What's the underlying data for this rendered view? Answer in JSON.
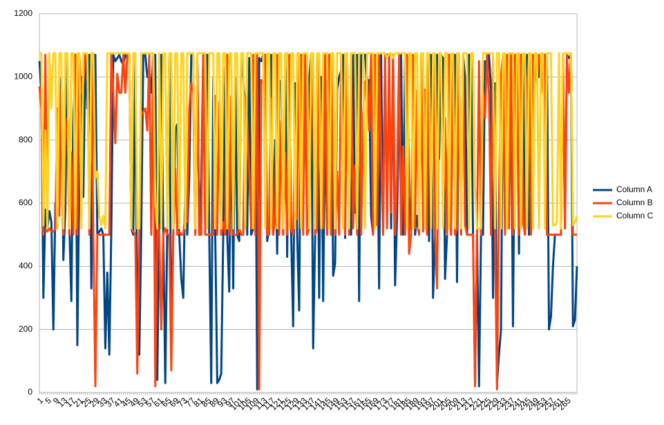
{
  "chart_data": {
    "type": "line",
    "categories": [
      1,
      null,
      null,
      null,
      5,
      null,
      null,
      null,
      9,
      null,
      null,
      null,
      13,
      null,
      null,
      null,
      17,
      null,
      null,
      null,
      21,
      null,
      null,
      null,
      25,
      null,
      null,
      null,
      29,
      null,
      null,
      null,
      33,
      null,
      null,
      null,
      37,
      null,
      null,
      null,
      41,
      null,
      null,
      null,
      45,
      null,
      null,
      null,
      49,
      null,
      null,
      null,
      53,
      null,
      null,
      null,
      57,
      null,
      null,
      null,
      61,
      null,
      null,
      null,
      65,
      null,
      null,
      null,
      69,
      null,
      null,
      null,
      73,
      null,
      null,
      null,
      77,
      null,
      null,
      null,
      81,
      null,
      null,
      null,
      85,
      null,
      null,
      null,
      89,
      null,
      null,
      null,
      93,
      null,
      null,
      null,
      97,
      null,
      null,
      null,
      101,
      null,
      null,
      null,
      105,
      null,
      null,
      null,
      109,
      null,
      null,
      null,
      113,
      null,
      null,
      null,
      117,
      null,
      null,
      null,
      121,
      null,
      null,
      null,
      125,
      null,
      null,
      null,
      129,
      null,
      null,
      null,
      133,
      null,
      null,
      null,
      137,
      null,
      null,
      null,
      141,
      null,
      null,
      null,
      145,
      null,
      null,
      null,
      149,
      null,
      null,
      null,
      153,
      null,
      null,
      null,
      157,
      null,
      null,
      null,
      161,
      null,
      null,
      null,
      165,
      null,
      null,
      null,
      169,
      null,
      null,
      null,
      173,
      null,
      null,
      null,
      177,
      null,
      null,
      null,
      181,
      null,
      null,
      null,
      185,
      null,
      null,
      null,
      189,
      null,
      null,
      null,
      193,
      null,
      null,
      null,
      197,
      null,
      null,
      null,
      201,
      null,
      null,
      null,
      205,
      null,
      null,
      null,
      209,
      null,
      null,
      null,
      213,
      null,
      null,
      null,
      217,
      null,
      null,
      null,
      221,
      null,
      null,
      null,
      225,
      null,
      null,
      null,
      229,
      null,
      null,
      null,
      233,
      null,
      null,
      null,
      237,
      null,
      null,
      null,
      241,
      null,
      null,
      null,
      245,
      null,
      null,
      null,
      249,
      null,
      null,
      null,
      253,
      null,
      null,
      null,
      257,
      null,
      null,
      null,
      261,
      null,
      null,
      null,
      265,
      null,
      null,
      null,
      null,
      null
    ],
    "series": [
      {
        "name": "Column A",
        "color": "#004586",
        "values": [
          1050,
          960,
          300,
          580,
          520,
          575,
          540,
          200,
          600,
          560,
          830,
          1000,
          420,
          580,
          1070,
          530,
          290,
          880,
          1070,
          150,
          700,
          1000,
          620,
          1070,
          900,
          1070,
          330,
          1070,
          1070,
          500,
          510,
          520,
          500,
          140,
          380,
          120,
          520,
          1070,
          1050,
          1060,
          1070,
          1050,
          1040,
          1070,
          1060,
          1070,
          520,
          500,
          1070,
          180,
          120,
          520,
          1070,
          1070,
          1000,
          1020,
          950,
          1070,
          1070,
          40,
          560,
          1070,
          500,
          30,
          520,
          1070,
          130,
          500,
          830,
          850,
          500,
          360,
          300,
          670,
          500,
          680,
          1070,
          1070,
          500,
          1070,
          500,
          680,
          1070,
          1070,
          1070,
          500,
          30,
          1000,
          500,
          30,
          40,
          60,
          500,
          1030,
          500,
          320,
          900,
          330,
          1000,
          500,
          480,
          1060,
          1000,
          900,
          500,
          1060,
          500,
          520,
          1070,
          10,
          1060,
          1050,
          1070,
          1070,
          480,
          520,
          1070,
          500,
          800,
          440,
          990,
          980,
          500,
          1070,
          430,
          1000,
          500,
          210,
          980,
          500,
          260,
          1070,
          1050,
          1000,
          500,
          990,
          1070,
          140,
          500,
          1070,
          300,
          1000,
          290,
          870,
          500,
          1070,
          1070,
          370,
          410,
          960,
          1000,
          1020,
          1070,
          490,
          1070,
          550,
          500,
          1070,
          570,
          1070,
          290,
          1070,
          1070,
          1070,
          960,
          990,
          560,
          500,
          890,
          910,
          330,
          1070,
          500,
          1070,
          1070,
          1070,
          520,
          1070,
          340,
          560,
          900,
          1070,
          500,
          1070,
          1070,
          620,
          510,
          1000,
          500,
          560,
          500,
          1070,
          1030,
          550,
          1070,
          480,
          1070,
          300,
          500,
          1070,
          740,
          1070,
          1060,
          360,
          500,
          1070,
          500,
          1070,
          1070,
          350,
          1070,
          500,
          1070,
          1000,
          500,
          1070,
          1070,
          500,
          30,
          500,
          20,
          500,
          500,
          1050,
          1000,
          1070,
          960,
          300,
          980,
          30,
          120,
          200,
          1070,
          1070,
          600,
          1070,
          1000,
          210,
          1000,
          1070,
          440,
          1070,
          1070,
          500,
          1070,
          500,
          1070,
          1050,
          1070,
          1070,
          1000,
          1070,
          1070,
          1070,
          1070,
          200,
          240,
          400,
          500,
          500,
          500,
          500,
          1070,
          520,
          1070,
          1060,
          1070,
          210,
          230,
          400
        ]
      },
      {
        "name": "Column B",
        "color": "#ff420e",
        "values": [
          970,
          900,
          500,
          1070,
          510,
          520,
          510,
          510,
          520,
          900,
          560,
          960,
          500,
          800,
          870,
          500,
          760,
          500,
          1070,
          500,
          1070,
          950,
          980,
          1070,
          1070,
          500,
          1070,
          500,
          20,
          500,
          500,
          500,
          500,
          500,
          500,
          500,
          1070,
          950,
          790,
          1010,
          950,
          950,
          1070,
          950,
          1070,
          1070,
          520,
          510,
          500,
          60,
          500,
          880,
          890,
          900,
          830,
          1070,
          500,
          1070,
          20,
          540,
          500,
          200,
          500,
          520,
          500,
          500,
          70,
          500,
          710,
          500,
          510,
          500,
          500,
          560,
          540,
          900,
          980,
          950,
          500,
          1070,
          500,
          500,
          1070,
          500,
          500,
          500,
          500,
          500,
          940,
          500,
          920,
          500,
          540,
          500,
          1070,
          500,
          940,
          500,
          500,
          500,
          520,
          500,
          500,
          940,
          860,
          700,
          520,
          1070,
          500,
          1070,
          10,
          990,
          980,
          1070,
          500,
          500,
          930,
          500,
          560,
          1070,
          500,
          860,
          500,
          760,
          500,
          1070,
          520,
          500,
          800,
          550,
          1070,
          1070,
          500,
          1070,
          500,
          520,
          1070,
          880,
          500,
          520,
          1070,
          650,
          520,
          1070,
          500,
          1070,
          500,
          1070,
          500,
          700,
          500,
          1070,
          650,
          500,
          1070,
          500,
          1070,
          520,
          720,
          500,
          1070,
          500,
          880,
          980,
          1000,
          830,
          1070,
          500,
          1070,
          530,
          1070,
          760,
          500,
          1070,
          520,
          1070,
          570,
          1070,
          500,
          690,
          1070,
          500,
          780,
          500,
          1070,
          440,
          500,
          1070,
          520,
          960,
          500,
          1070,
          510,
          960,
          500,
          1070,
          520,
          1070,
          500,
          330,
          950,
          1070,
          530,
          870,
          500,
          1070,
          500,
          1070,
          500,
          520,
          1070,
          500,
          1070,
          530,
          500,
          500,
          500,
          500,
          20,
          500,
          1050,
          500,
          950,
          870,
          1070,
          940,
          500,
          1070,
          500,
          10,
          600,
          1000,
          1070,
          500,
          1070,
          520,
          1070,
          500,
          1070,
          1070,
          500,
          1070,
          540,
          500,
          970,
          1070,
          500,
          1070,
          1070,
          980,
          1070,
          1070,
          950,
          1070,
          500,
          500,
          500,
          500,
          500,
          500,
          500,
          500,
          1070,
          520,
          1070,
          950,
          1070,
          500,
          500,
          500
        ]
      },
      {
        "name": "Column C",
        "color": "#ffd320",
        "values": [
          1075,
          1075,
          530,
          830,
          520,
          1075,
          900,
          1075,
          1075,
          520,
          1075,
          1075,
          520,
          1075,
          1075,
          520,
          1075,
          1075,
          520,
          1075,
          1075,
          520,
          1075,
          1075,
          1075,
          520,
          1075,
          1075,
          680,
          700,
          560,
          530,
          560,
          520,
          1075,
          1075,
          1075,
          1075,
          1075,
          1075,
          1075,
          1075,
          1075,
          1075,
          1075,
          1075,
          520,
          1075,
          1075,
          520,
          520,
          1075,
          1075,
          1075,
          1075,
          1075,
          1075,
          1075,
          600,
          520,
          1075,
          520,
          1075,
          1075,
          520,
          1075,
          1075,
          520,
          1075,
          1075,
          520,
          1075,
          1075,
          520,
          1075,
          1075,
          1075,
          1075,
          520,
          1075,
          1075,
          1075,
          1075,
          1075,
          520,
          1075,
          1075,
          1075,
          520,
          1075,
          1075,
          520,
          1075,
          1075,
          520,
          1075,
          1075,
          520,
          1075,
          1075,
          520,
          1075,
          1075,
          520,
          1075,
          1075,
          1075,
          520,
          1075,
          1075,
          1075,
          1075,
          1075,
          520,
          1075,
          1075,
          520,
          1075,
          1075,
          520,
          1075,
          1075,
          520,
          1075,
          1075,
          520,
          1075,
          1075,
          520,
          1075,
          1075,
          520,
          1075,
          1075,
          1075,
          520,
          1075,
          1075,
          520,
          1075,
          1075,
          520,
          1075,
          1075,
          1075,
          520,
          1075,
          1075,
          520,
          1075,
          1075,
          1075,
          520,
          1075,
          1075,
          520,
          1075,
          1075,
          1075,
          520,
          1075,
          1075,
          1075,
          520,
          1075,
          1075,
          1075,
          1075,
          520,
          1075,
          1075,
          1075,
          1075,
          1075,
          1060,
          1075,
          1075,
          1060,
          1075,
          1075,
          1075,
          1075,
          1075,
          1075,
          520,
          1075,
          1075,
          520,
          1075,
          1075,
          520,
          1075,
          1075,
          520,
          1075,
          1075,
          520,
          1075,
          1075,
          520,
          1075,
          1075,
          520,
          1075,
          1075,
          520,
          1075,
          1075,
          520,
          1075,
          1075,
          520,
          1075,
          1075,
          1075,
          520,
          1075,
          1075,
          650,
          520,
          520,
          520,
          1075,
          1075,
          1075,
          1075,
          1075,
          1075,
          520,
          1075,
          1075,
          520,
          1075,
          1075,
          520,
          1075,
          1075,
          1075,
          520,
          1075,
          1075,
          520,
          1075,
          1075,
          520,
          1075,
          1075,
          520,
          1075,
          1075,
          520,
          1075,
          1075,
          520,
          1075,
          1075,
          1075,
          530,
          530,
          540,
          1075,
          520,
          1075,
          1075,
          1075,
          1075,
          1075,
          530,
          540,
          560
        ]
      }
    ],
    "ylim": [
      0,
      1200
    ],
    "yticks": [
      0,
      200,
      400,
      600,
      800,
      1000,
      1200
    ],
    "grid": true,
    "legend": "right"
  }
}
